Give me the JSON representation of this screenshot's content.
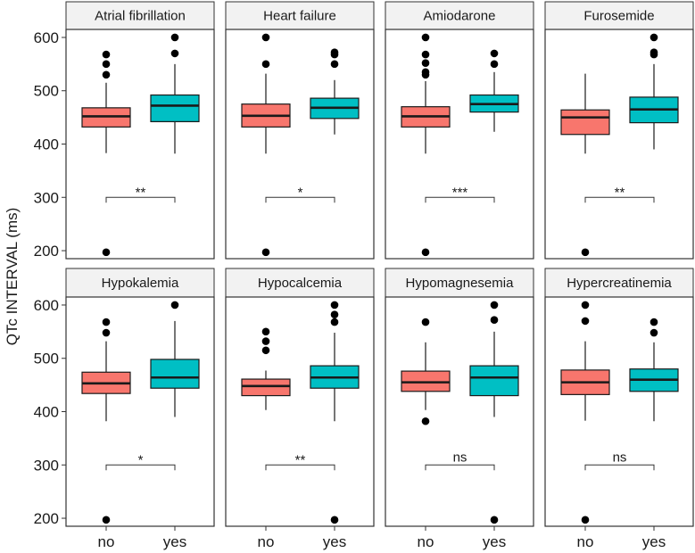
{
  "chart_data": {
    "type": "boxplot",
    "ylabel": "QTc INTERVAL (ms)",
    "ylim": [
      185,
      615
    ],
    "yticks": [
      200,
      300,
      400,
      500,
      600
    ],
    "categories": [
      "no",
      "yes"
    ],
    "colors": {
      "no": "#F8766D",
      "yes": "#00BFC4"
    },
    "panels": [
      {
        "title": "Atrial fibrillation",
        "significance": "**",
        "boxes": [
          {
            "group": "no",
            "whisker_low": 383,
            "q1": 432,
            "median": 452,
            "q3": 468,
            "whisker_high": 515,
            "outliers": [
              197,
              530,
              550,
              568
            ]
          },
          {
            "group": "yes",
            "whisker_low": 382,
            "q1": 442,
            "median": 472,
            "q3": 492,
            "whisker_high": 550,
            "outliers": [
              570,
              600
            ]
          }
        ]
      },
      {
        "title": "Heart failure",
        "significance": "*",
        "boxes": [
          {
            "group": "no",
            "whisker_low": 382,
            "q1": 432,
            "median": 453,
            "q3": 475,
            "whisker_high": 532,
            "outliers": [
              197,
              550,
              600
            ]
          },
          {
            "group": "yes",
            "whisker_low": 418,
            "q1": 448,
            "median": 468,
            "q3": 486,
            "whisker_high": 520,
            "outliers": [
              550,
              568,
              572
            ]
          }
        ]
      },
      {
        "title": "Amiodarone",
        "significance": "***",
        "boxes": [
          {
            "group": "no",
            "whisker_low": 382,
            "q1": 432,
            "median": 452,
            "q3": 470,
            "whisker_high": 518,
            "outliers": [
              197,
              530,
              535,
              552,
              568,
              600
            ]
          },
          {
            "group": "yes",
            "whisker_low": 423,
            "q1": 460,
            "median": 475,
            "q3": 492,
            "whisker_high": 535,
            "outliers": [
              550,
              570
            ]
          }
        ]
      },
      {
        "title": "Furosemide",
        "significance": "**",
        "boxes": [
          {
            "group": "no",
            "whisker_low": 382,
            "q1": 418,
            "median": 450,
            "q3": 464,
            "whisker_high": 532,
            "outliers": [
              197
            ]
          },
          {
            "group": "yes",
            "whisker_low": 390,
            "q1": 440,
            "median": 465,
            "q3": 488,
            "whisker_high": 550,
            "outliers": [
              568,
              572,
              600
            ]
          }
        ]
      },
      {
        "title": "Hypokalemia",
        "significance": "*",
        "boxes": [
          {
            "group": "no",
            "whisker_low": 382,
            "q1": 434,
            "median": 453,
            "q3": 474,
            "whisker_high": 532,
            "outliers": [
              197,
              548,
              568
            ]
          },
          {
            "group": "yes",
            "whisker_low": 390,
            "q1": 444,
            "median": 464,
            "q3": 498,
            "whisker_high": 570,
            "outliers": [
              600
            ]
          }
        ]
      },
      {
        "title": "Hypocalcemia",
        "significance": "**",
        "boxes": [
          {
            "group": "no",
            "whisker_low": 403,
            "q1": 430,
            "median": 448,
            "q3": 461,
            "whisker_high": 477,
            "outliers": [
              515,
              532,
              550
            ]
          },
          {
            "group": "yes",
            "whisker_low": 382,
            "q1": 444,
            "median": 464,
            "q3": 486,
            "whisker_high": 548,
            "outliers": [
              197,
              568,
              582,
              600
            ]
          }
        ]
      },
      {
        "title": "Hypomagnesemia",
        "significance": "ns",
        "boxes": [
          {
            "group": "no",
            "whisker_low": 403,
            "q1": 438,
            "median": 455,
            "q3": 476,
            "whisker_high": 530,
            "outliers": [
              382,
              568
            ]
          },
          {
            "group": "yes",
            "whisker_low": 390,
            "q1": 430,
            "median": 464,
            "q3": 486,
            "whisker_high": 550,
            "outliers": [
              197,
              572,
              600
            ]
          }
        ]
      },
      {
        "title": "Hypercreatinemia",
        "significance": "ns",
        "boxes": [
          {
            "group": "no",
            "whisker_low": 383,
            "q1": 432,
            "median": 455,
            "q3": 478,
            "whisker_high": 532,
            "outliers": [
              197,
              570,
              600
            ]
          },
          {
            "group": "yes",
            "whisker_low": 382,
            "q1": 438,
            "median": 460,
            "q3": 480,
            "whisker_high": 530,
            "outliers": [
              548,
              568
            ]
          }
        ]
      }
    ],
    "significance_bracket_value": 300
  }
}
